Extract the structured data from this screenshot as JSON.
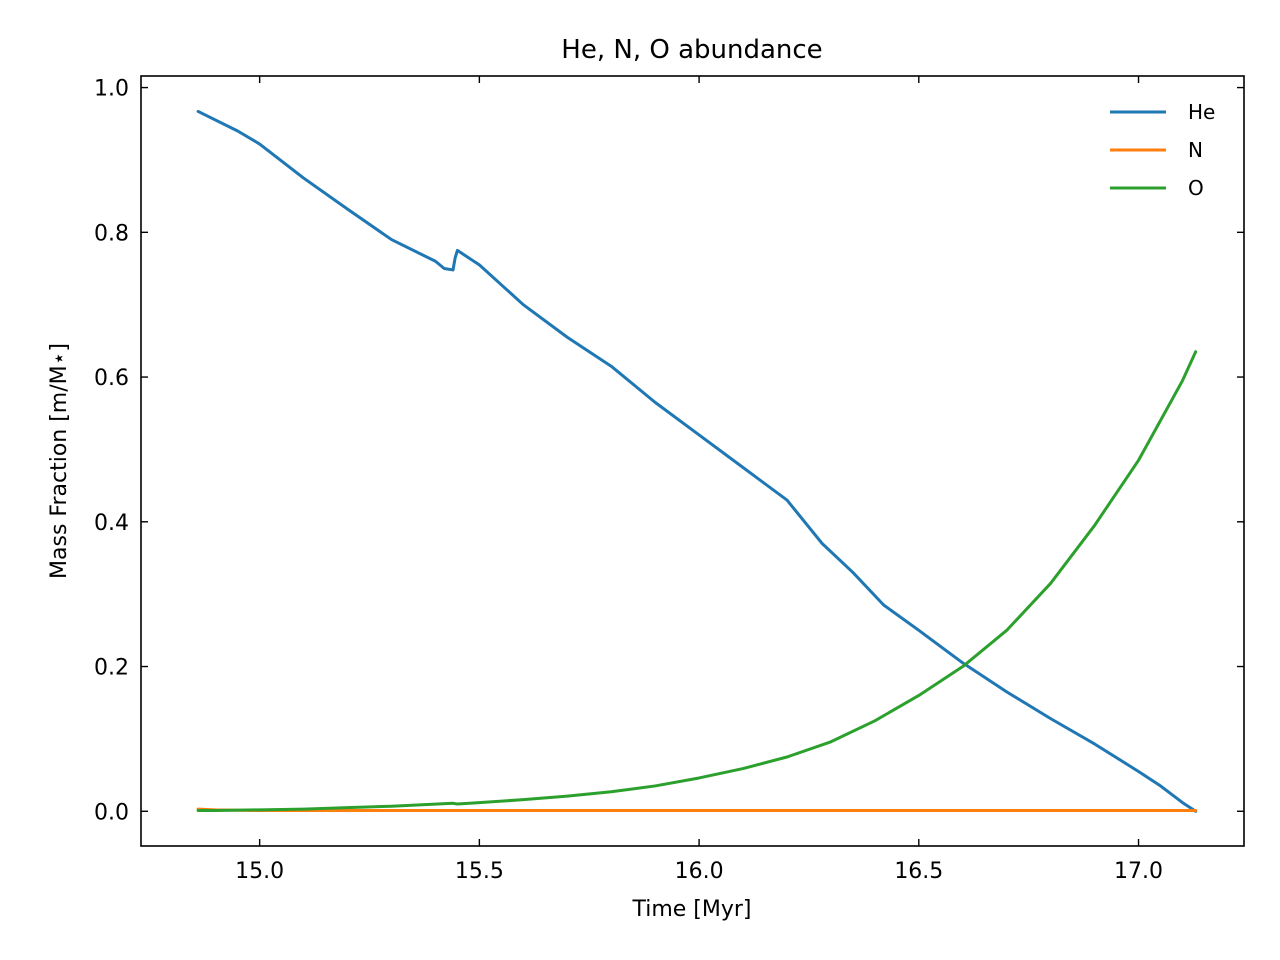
{
  "chart_data": {
    "type": "line",
    "title": "He, N, O abundance",
    "xlabel": "Time [Myr]",
    "ylabel": "Mass Fraction [m/M⋆]",
    "xlim": [
      14.73,
      17.24
    ],
    "ylim": [
      -0.048,
      1.016
    ],
    "xticks": [
      15.0,
      15.5,
      16.0,
      16.5,
      17.0
    ],
    "xtick_labels": [
      "15.0",
      "15.5",
      "16.0",
      "16.5",
      "17.0"
    ],
    "yticks": [
      0.0,
      0.2,
      0.4,
      0.6,
      0.8,
      1.0
    ],
    "ytick_labels": [
      "0.0",
      "0.2",
      "0.4",
      "0.6",
      "0.8",
      "1.0"
    ],
    "grid": false,
    "legend_position": "top-right",
    "series": [
      {
        "name": "He",
        "color": "#1f77b4",
        "x": [
          14.86,
          14.95,
          15.0,
          15.1,
          15.2,
          15.3,
          15.4,
          15.42,
          15.44,
          15.445,
          15.45,
          15.5,
          15.6,
          15.7,
          15.8,
          15.9,
          16.0,
          16.1,
          16.2,
          16.28,
          16.35,
          16.42,
          16.5,
          16.6,
          16.7,
          16.8,
          16.9,
          17.0,
          17.05,
          17.1,
          17.13
        ],
        "y": [
          0.967,
          0.94,
          0.922,
          0.875,
          0.832,
          0.79,
          0.76,
          0.75,
          0.748,
          0.765,
          0.775,
          0.755,
          0.7,
          0.655,
          0.615,
          0.565,
          0.52,
          0.475,
          0.43,
          0.37,
          0.33,
          0.285,
          0.25,
          0.205,
          0.165,
          0.128,
          0.093,
          0.055,
          0.035,
          0.012,
          0.0
        ]
      },
      {
        "name": "N",
        "color": "#ff7f0e",
        "x": [
          14.86,
          14.9,
          15.0,
          15.5,
          16.0,
          16.5,
          17.0,
          17.13
        ],
        "y": [
          0.003,
          0.002,
          0.001,
          0.001,
          0.001,
          0.001,
          0.001,
          0.001
        ]
      },
      {
        "name": "O",
        "color": "#2ca02c",
        "x": [
          14.86,
          14.9,
          15.0,
          15.1,
          15.2,
          15.3,
          15.44,
          15.45,
          15.5,
          15.6,
          15.7,
          15.8,
          15.9,
          16.0,
          16.1,
          16.2,
          16.3,
          16.4,
          16.5,
          16.6,
          16.7,
          16.8,
          16.9,
          17.0,
          17.05,
          17.1,
          17.13
        ],
        "y": [
          0.001,
          0.001,
          0.002,
          0.003,
          0.005,
          0.007,
          0.011,
          0.01,
          0.012,
          0.016,
          0.021,
          0.027,
          0.035,
          0.046,
          0.059,
          0.075,
          0.096,
          0.125,
          0.16,
          0.2,
          0.25,
          0.315,
          0.395,
          0.485,
          0.54,
          0.595,
          0.635
        ]
      }
    ]
  }
}
